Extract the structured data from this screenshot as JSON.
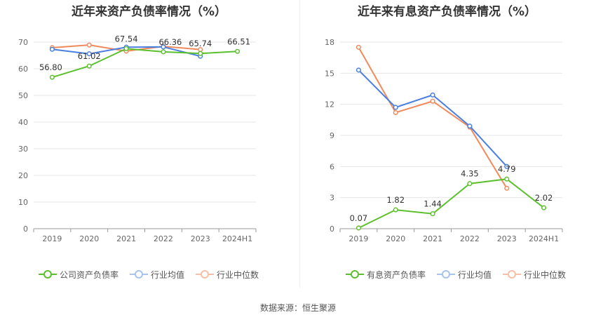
{
  "source_text": "数据来源：恒生聚源",
  "colors": {
    "company": "#5cc02e",
    "avg": "#4a7fe0",
    "median": "#f08a5d",
    "grid": "#e6e6e6",
    "axis": "#999999"
  },
  "chart_data": [
    {
      "type": "line",
      "title": "近年来资产负债率情况（%）",
      "categories": [
        "2019",
        "2020",
        "2021",
        "2022",
        "2023",
        "2024H1"
      ],
      "ylim": [
        0,
        70
      ],
      "yticks": [
        0,
        10,
        20,
        30,
        40,
        50,
        60,
        70
      ],
      "grid": true,
      "legend_position": "bottom",
      "series": [
        {
          "name": "公司资产负债率",
          "color_key": "company",
          "values": [
            56.8,
            61.02,
            67.54,
            66.36,
            65.74,
            66.51
          ],
          "labels": [
            "56.80",
            "61.02",
            "67.54",
            "66.36",
            "65.74",
            "66.51"
          ]
        },
        {
          "name": "行业均值",
          "color_key": "avg",
          "values": [
            67.3,
            65.6,
            68.1,
            68.2,
            64.7,
            null
          ],
          "labels": []
        },
        {
          "name": "行业中位数",
          "color_key": "median",
          "values": [
            67.9,
            68.9,
            66.6,
            68.4,
            67.2,
            null
          ],
          "labels": []
        }
      ]
    },
    {
      "type": "line",
      "title": "近年来有息资产负债率情况（%）",
      "categories": [
        "2019",
        "2020",
        "2021",
        "2022",
        "2023",
        "2024H1"
      ],
      "ylim": [
        0,
        18
      ],
      "yticks": [
        0,
        3,
        6,
        9,
        12,
        15,
        18
      ],
      "grid": true,
      "legend_position": "bottom",
      "series": [
        {
          "name": "有息资产负债率",
          "color_key": "company",
          "values": [
            0.07,
            1.82,
            1.44,
            4.35,
            4.79,
            2.02
          ],
          "labels": [
            "0.07",
            "1.82",
            "1.44",
            "4.35",
            "4.79",
            "2.02"
          ]
        },
        {
          "name": "行业均值",
          "color_key": "avg",
          "values": [
            15.3,
            11.7,
            12.9,
            9.9,
            6.0,
            null
          ],
          "labels": []
        },
        {
          "name": "行业中位数",
          "color_key": "median",
          "values": [
            17.5,
            11.2,
            12.3,
            9.8,
            3.9,
            null
          ],
          "labels": []
        }
      ]
    }
  ]
}
